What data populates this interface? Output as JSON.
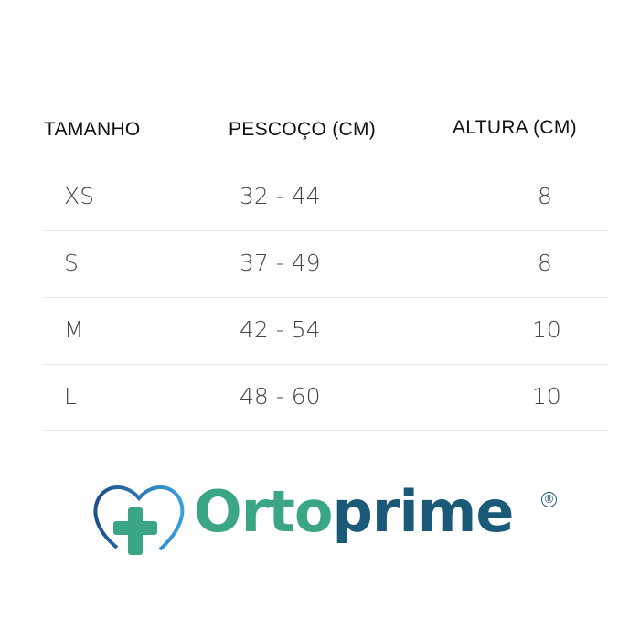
{
  "table": {
    "headers": [
      "TAMANHO",
      "PESCOÇO (CM)",
      "ALTURA (CM)"
    ],
    "rows": [
      [
        "XS",
        "32 - 44",
        "8"
      ],
      [
        "S",
        "37 - 49",
        "8"
      ],
      [
        "M",
        "42 - 54",
        "10"
      ],
      [
        "L",
        "48 - 60",
        "10"
      ]
    ]
  },
  "logo": {
    "text_part1": "Orto",
    "text_part2": "prime",
    "registered": "®",
    "colors": {
      "green": "#3aa686",
      "blue": "#1a5a78"
    }
  }
}
